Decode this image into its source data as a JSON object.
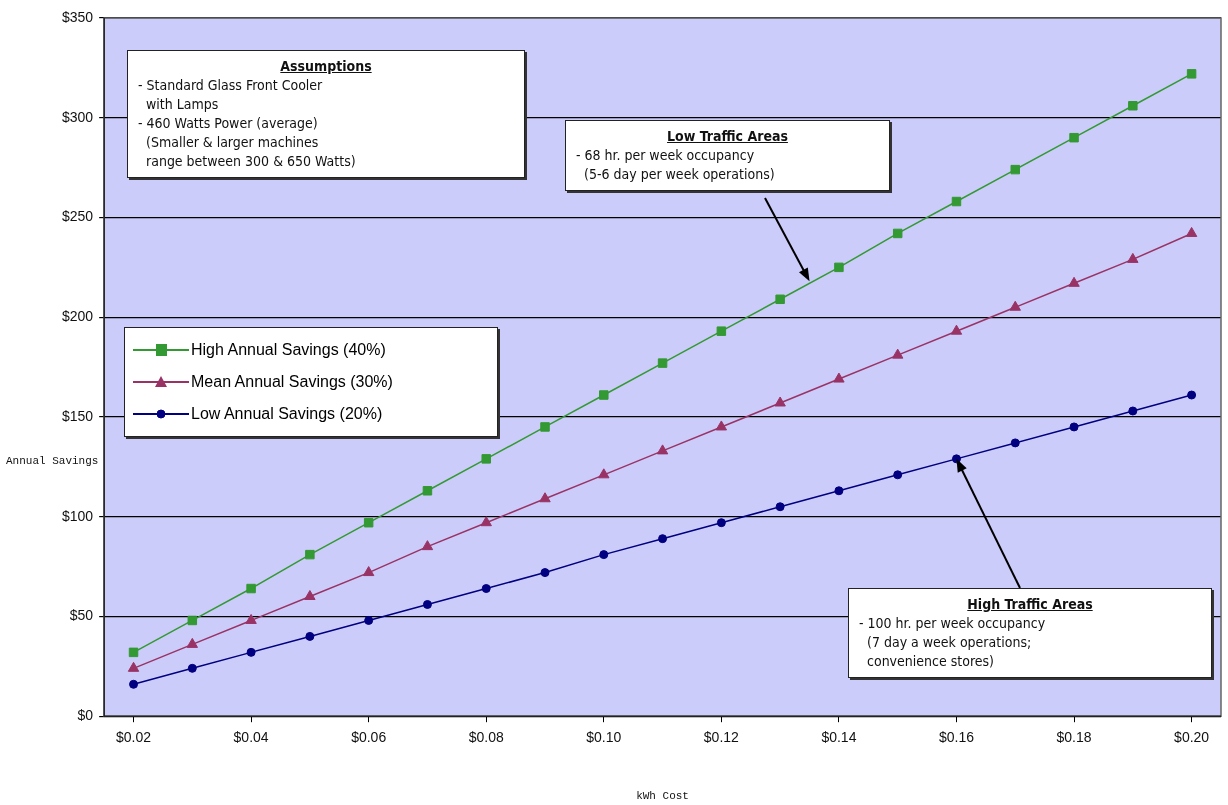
{
  "chart_data": {
    "type": "line",
    "xlabel": "kWh Cost",
    "ylabel": "Annual Savings",
    "x": [
      0.02,
      0.03,
      0.04,
      0.05,
      0.06,
      0.07,
      0.08,
      0.09,
      0.1,
      0.11,
      0.12,
      0.13,
      0.14,
      0.15,
      0.16,
      0.17,
      0.18,
      0.19,
      0.2
    ],
    "series": [
      {
        "name": "High Annual Savings (40%)",
        "color": "#339933",
        "marker": "square",
        "values": [
          32,
          48,
          64,
          81,
          97,
          113,
          129,
          145,
          161,
          177,
          193,
          209,
          225,
          242,
          258,
          274,
          290,
          306,
          322
        ]
      },
      {
        "name": "Mean Annual Savings (30%)",
        "color": "#993366",
        "marker": "triangle",
        "values": [
          24,
          36,
          48,
          60,
          72,
          85,
          97,
          109,
          121,
          133,
          145,
          157,
          169,
          181,
          193,
          205,
          217,
          229,
          242
        ]
      },
      {
        "name": "Low Annual Savings (20%)",
        "color": "#000080",
        "marker": "circle",
        "values": [
          16,
          24,
          32,
          40,
          48,
          56,
          64,
          72,
          81,
          89,
          97,
          105,
          113,
          121,
          129,
          137,
          145,
          153,
          161
        ]
      }
    ],
    "xlim": [
      0.015,
      0.205
    ],
    "xticks": [
      {
        "value": 0.02,
        "label": "$0.02"
      },
      {
        "value": 0.04,
        "label": "$0.04"
      },
      {
        "value": 0.06,
        "label": "$0.06"
      },
      {
        "value": 0.08,
        "label": "$0.08"
      },
      {
        "value": 0.1,
        "label": "$0.10"
      },
      {
        "value": 0.12,
        "label": "$0.12"
      },
      {
        "value": 0.14,
        "label": "$0.14"
      },
      {
        "value": 0.16,
        "label": "$0.16"
      },
      {
        "value": 0.18,
        "label": "$0.18"
      },
      {
        "value": 0.2,
        "label": "$0.20"
      }
    ],
    "ylim": [
      0,
      350
    ],
    "yticks": [
      {
        "value": 0,
        "label": "$0"
      },
      {
        "value": 50,
        "label": "$50"
      },
      {
        "value": 100,
        "label": "$100"
      },
      {
        "value": 150,
        "label": "$150"
      },
      {
        "value": 200,
        "label": "$200"
      },
      {
        "value": 250,
        "label": "$250"
      },
      {
        "value": 300,
        "label": "$300"
      },
      {
        "value": 350,
        "label": "$350"
      }
    ],
    "grid": "y",
    "legend": "left",
    "line_style": "solid",
    "annotations": [
      "Assumptions\n- Standard Glass Front Cooler\n  with Lamps\n- 460 Watts Power (average)\n  (Smaller & larger machines\n  range between 300 & 650 Watts)",
      {
        "text": "Low Traffic Areas\n- 68 hr. per week occupancy\n  (5-6 day per week operations)",
        "x": 0.135,
        "y": 218
      },
      {
        "text": "High Traffic Areas\n- 100 hr. per week occupancy\n  (7 day a week operations;\n  convenience stores)",
        "x": 0.16,
        "y": 129
      }
    ]
  }
}
